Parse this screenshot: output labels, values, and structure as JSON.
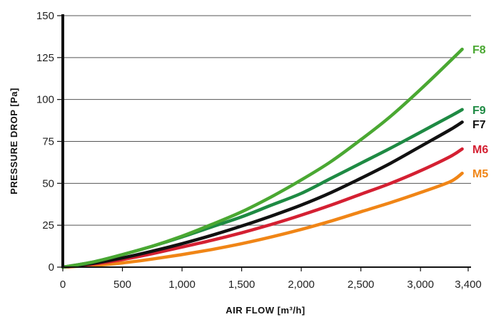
{
  "chart_data": {
    "type": "line",
    "title": "",
    "xlabel": "AIR FLOW [m³/h]",
    "ylabel": "PRESSURE DROP [Pa]",
    "xlim": [
      0,
      3400
    ],
    "ylim": [
      0,
      150
    ],
    "x_ticks": [
      0,
      500,
      1000,
      1500,
      2000,
      2500,
      3000,
      3400
    ],
    "x_tick_labels": [
      "0",
      "500",
      "1,000",
      "1,500",
      "2,000",
      "2,500",
      "3,000",
      "3,400"
    ],
    "y_ticks": [
      0,
      25,
      50,
      75,
      100,
      125,
      150
    ],
    "y_tick_labels": [
      "0",
      "25",
      "50",
      "75",
      "100",
      "125",
      "150"
    ],
    "grid": "horizontal",
    "legend": "series labels at right end of lines",
    "x": [
      0,
      250,
      500,
      750,
      1000,
      1250,
      1500,
      1750,
      2000,
      2250,
      2500,
      2750,
      3000,
      3250,
      3350
    ],
    "series": [
      {
        "name": "F8",
        "color": "#4aa832",
        "values": [
          0,
          3,
          7.5,
          12.5,
          18.5,
          25.5,
          33,
          42,
          52,
          63,
          76,
          90,
          106,
          123,
          130
        ]
      },
      {
        "name": "F9",
        "color": "#1e8a43",
        "values": [
          0,
          3,
          7.5,
          12.5,
          18,
          24,
          30,
          37,
          44,
          53,
          62,
          71,
          80.5,
          90,
          94
        ]
      },
      {
        "name": "F7",
        "color": "#111111",
        "values": [
          0,
          2.2,
          5.5,
          9.5,
          14,
          19,
          24.5,
          30.5,
          37,
          44.5,
          53,
          62,
          72,
          82,
          86.5
        ]
      },
      {
        "name": "M6",
        "color": "#d42032",
        "values": [
          0,
          1.8,
          4.5,
          8,
          12,
          16,
          20.5,
          25.5,
          31,
          37,
          43.5,
          50,
          57.5,
          66,
          70.5
        ]
      },
      {
        "name": "M5",
        "color": "#f08516",
        "values": [
          0,
          1,
          2.5,
          4.8,
          7.5,
          10.5,
          14,
          18,
          22.5,
          27.5,
          33,
          38.5,
          44.5,
          51,
          56
        ]
      }
    ]
  }
}
